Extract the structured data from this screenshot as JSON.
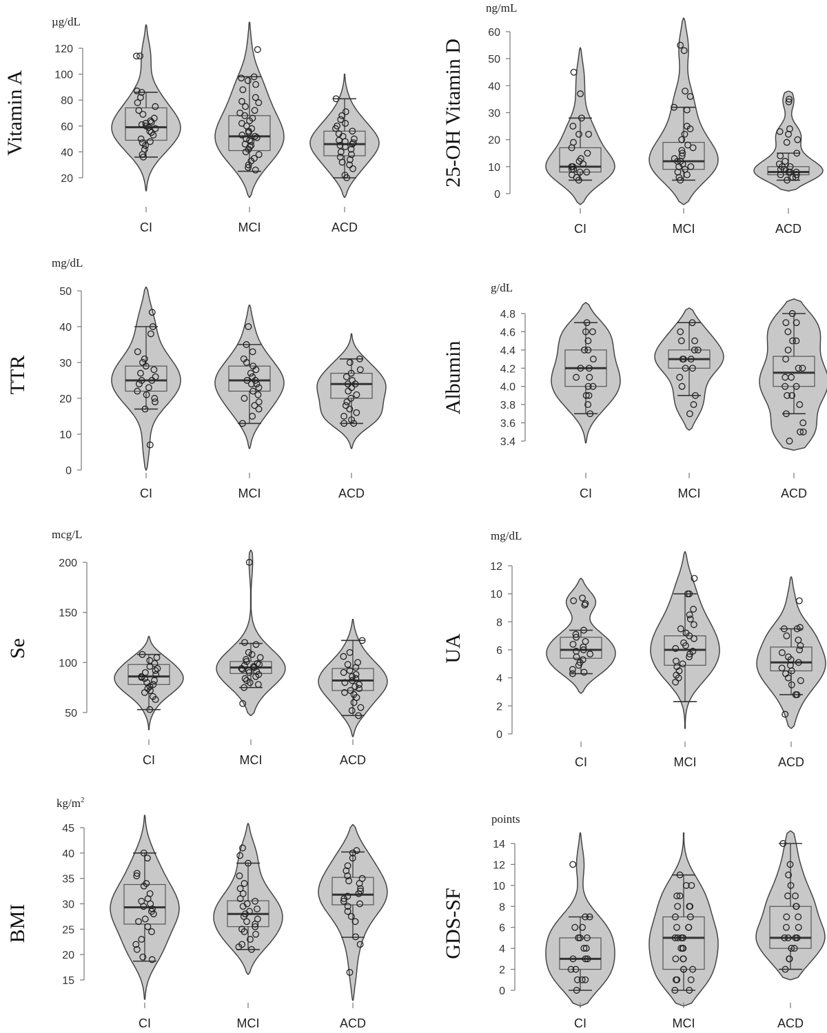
{
  "chart_data": [
    {
      "type": "violin",
      "title": "",
      "ylabel": "Vitamin A",
      "unit": "µg/dL",
      "yticks": [
        20,
        40,
        60,
        80,
        100,
        120
      ],
      "ylim": [
        20,
        120
      ],
      "categories": [
        "CI",
        "MCI",
        "ACD"
      ],
      "series": [
        {
          "group": "CI",
          "violin_range": [
            10,
            138
          ],
          "box": {
            "q1": 49,
            "median": 59,
            "q3": 74
          },
          "whiskers": [
            36,
            86
          ],
          "points": [
            114,
            114,
            87,
            86,
            82,
            78,
            75,
            72,
            69,
            66,
            64,
            63,
            62,
            61,
            60,
            59,
            58,
            56,
            55,
            53,
            50,
            48,
            47,
            45,
            42,
            38,
            36
          ]
        },
        {
          "group": "MCI",
          "violin_range": [
            5,
            140
          ],
          "box": {
            "q1": 41,
            "median": 52,
            "q3": 68
          },
          "whiskers": [
            25,
            98
          ],
          "points": [
            119,
            98,
            97,
            95,
            92,
            88,
            82,
            79,
            78,
            75,
            72,
            70,
            68,
            66,
            64,
            62,
            60,
            58,
            56,
            55,
            53,
            52,
            51,
            50,
            49,
            48,
            46,
            45,
            44,
            42,
            40,
            38,
            35,
            33,
            30,
            28,
            26
          ]
        },
        {
          "group": "ACD",
          "violin_range": [
            5,
            100
          ],
          "box": {
            "q1": 37,
            "median": 46,
            "q3": 56
          },
          "whiskers": [
            20,
            81
          ],
          "points": [
            81,
            71,
            68,
            65,
            62,
            60,
            58,
            56,
            54,
            52,
            50,
            49,
            48,
            47,
            46,
            45,
            44,
            42,
            40,
            38,
            36,
            34,
            32,
            30,
            27,
            22,
            20
          ]
        }
      ]
    },
    {
      "type": "violin",
      "title": "",
      "ylabel": "25-OH Vitamin D",
      "unit": "ng/mL",
      "yticks": [
        0,
        10,
        20,
        30,
        40,
        50,
        60
      ],
      "ylim": [
        0,
        60
      ],
      "categories": [
        "CI",
        "MCI",
        "ACD"
      ],
      "series": [
        {
          "group": "CI",
          "violin_range": [
            -4,
            54
          ],
          "box": {
            "q1": 8,
            "median": 10,
            "q3": 17
          },
          "whiskers": [
            5,
            28
          ],
          "points": [
            45,
            37,
            28,
            25,
            22,
            22,
            19,
            17,
            15,
            13,
            12,
            11,
            10,
            10,
            9,
            9,
            8,
            8,
            7,
            6,
            5
          ]
        },
        {
          "group": "MCI",
          "violin_range": [
            -4,
            65
          ],
          "box": {
            "q1": 9,
            "median": 12,
            "q3": 19
          },
          "whiskers": [
            5,
            32
          ],
          "points": [
            55,
            53,
            38,
            36,
            32,
            31,
            25,
            24,
            22,
            20,
            18,
            17,
            16,
            15,
            14,
            13,
            12,
            12,
            11,
            10,
            10,
            9,
            8,
            7,
            6,
            5
          ]
        },
        {
          "group": "ACD",
          "violin_range": [
            1,
            38
          ],
          "box": {
            "q1": 7,
            "median": 8,
            "q3": 10
          },
          "whiskers": [
            5,
            15
          ],
          "points": [
            35,
            34,
            24,
            23,
            22,
            20,
            19,
            15,
            14,
            12,
            11,
            10,
            10,
            9,
            9,
            8,
            8,
            8,
            7,
            7,
            6,
            6,
            5
          ]
        }
      ]
    },
    {
      "type": "violin",
      "title": "",
      "ylabel": "TTR",
      "unit": "mg/dL",
      "yticks": [
        0,
        10,
        20,
        30,
        40,
        50
      ],
      "ylim": [
        0,
        50
      ],
      "categories": [
        "CI",
        "MCI",
        "ACD"
      ],
      "series": [
        {
          "group": "CI",
          "violin_range": [
            0,
            51
          ],
          "box": {
            "q1": 22,
            "median": 25,
            "q3": 29
          },
          "whiskers": [
            17,
            40
          ],
          "points": [
            44,
            40,
            38,
            33,
            31,
            30,
            29,
            28,
            27,
            26,
            25,
            25,
            24,
            23,
            22,
            21,
            20,
            19,
            17,
            7
          ]
        },
        {
          "group": "MCI",
          "violin_range": [
            6,
            46
          ],
          "box": {
            "q1": 22,
            "median": 25,
            "q3": 29
          },
          "whiskers": [
            13,
            35
          ],
          "points": [
            40,
            35,
            33,
            31,
            30,
            29,
            28,
            27,
            26,
            25,
            25,
            24,
            24,
            23,
            22,
            21,
            20,
            19,
            18,
            17,
            15,
            13
          ]
        },
        {
          "group": "ACD",
          "violin_range": [
            6,
            38
          ],
          "box": {
            "q1": 20,
            "median": 24,
            "q3": 27
          },
          "whiskers": [
            13,
            31
          ],
          "points": [
            31,
            30,
            28,
            27,
            26,
            25,
            24,
            24,
            23,
            22,
            21,
            20,
            19,
            18,
            17,
            16,
            15,
            14,
            13,
            13
          ]
        }
      ]
    },
    {
      "type": "violin",
      "title": "",
      "ylabel": "Albumin",
      "unit": "g/dL",
      "yticks": [
        3.4,
        3.6,
        3.8,
        4.0,
        4.2,
        4.4,
        4.6,
        4.8
      ],
      "ylim": [
        3.4,
        4.8
      ],
      "categories": [
        "CI",
        "MCI",
        "ACD"
      ],
      "series": [
        {
          "group": "CI",
          "violin_range": [
            3.38,
            4.92
          ],
          "box": {
            "q1": 4.0,
            "median": 4.2,
            "q3": 4.4
          },
          "whiskers": [
            3.7,
            4.7
          ],
          "points": [
            4.7,
            4.6,
            4.6,
            4.5,
            4.4,
            4.4,
            4.3,
            4.2,
            4.2,
            4.1,
            4.1,
            4.0,
            4.0,
            3.9,
            3.9,
            3.8,
            3.7
          ]
        },
        {
          "group": "MCI",
          "violin_range": [
            3.52,
            4.86
          ],
          "box": {
            "q1": 4.2,
            "median": 4.3,
            "q3": 4.4
          },
          "whiskers": [
            3.9,
            4.7
          ],
          "points": [
            4.7,
            4.6,
            4.5,
            4.5,
            4.4,
            4.4,
            4.3,
            4.3,
            4.3,
            4.2,
            4.2,
            4.1,
            4.0,
            3.9,
            3.8,
            3.7
          ]
        },
        {
          "group": "ACD",
          "violin_range": [
            3.3,
            4.96
          ],
          "box": {
            "q1": 4.0,
            "median": 4.15,
            "q3": 4.33
          },
          "whiskers": [
            3.7,
            4.8
          ],
          "points": [
            4.8,
            4.7,
            4.7,
            4.6,
            4.5,
            4.5,
            4.4,
            4.3,
            4.2,
            4.2,
            4.1,
            4.1,
            4.0,
            4.0,
            3.9,
            3.9,
            3.8,
            3.7,
            3.6,
            3.5,
            3.5,
            3.4
          ]
        }
      ]
    },
    {
      "type": "violin",
      "title": "",
      "ylabel": "Se",
      "unit": "mcg/L",
      "yticks": [
        50,
        100,
        150,
        200
      ],
      "ylim": [
        50,
        200
      ],
      "categories": [
        "CI",
        "MCI",
        "ACD"
      ],
      "series": [
        {
          "group": "CI",
          "violin_range": [
            33,
            126
          ],
          "box": {
            "q1": 78,
            "median": 86,
            "q3": 98
          },
          "whiskers": [
            53,
            108
          ],
          "points": [
            108,
            105,
            102,
            99,
            96,
            94,
            92,
            90,
            88,
            86,
            85,
            84,
            82,
            80,
            78,
            76,
            74,
            72,
            70,
            66,
            63,
            53
          ]
        },
        {
          "group": "MCI",
          "violin_range": [
            47,
            212
          ],
          "box": {
            "q1": 89,
            "median": 95,
            "q3": 101
          },
          "whiskers": [
            75,
            119
          ],
          "points": [
            200,
            120,
            118,
            110,
            108,
            105,
            103,
            101,
            99,
            98,
            97,
            96,
            95,
            94,
            93,
            92,
            91,
            90,
            88,
            86,
            84,
            82,
            80,
            78,
            75,
            59
          ]
        },
        {
          "group": "ACD",
          "violin_range": [
            26,
            143
          ],
          "box": {
            "q1": 72,
            "median": 82,
            "q3": 94
          },
          "whiskers": [
            47,
            122
          ],
          "points": [
            122,
            110,
            106,
            100,
            98,
            95,
            92,
            90,
            88,
            86,
            84,
            82,
            80,
            78,
            76,
            74,
            72,
            70,
            68,
            65,
            60,
            55,
            52,
            47
          ]
        }
      ]
    },
    {
      "type": "violin",
      "title": "",
      "ylabel": "UA",
      "unit": "mg/dL",
      "yticks": [
        0,
        2,
        4,
        6,
        8,
        10,
        12
      ],
      "ylim": [
        0,
        12
      ],
      "categories": [
        "CI",
        "MCI",
        "ACD"
      ],
      "series": [
        {
          "group": "CI",
          "violin_range": [
            2.9,
            11.1
          ],
          "box": {
            "q1": 5.4,
            "median": 6.0,
            "q3": 6.9
          },
          "whiskers": [
            4.3,
            7.4
          ],
          "points": [
            9.7,
            9.5,
            9.3,
            9.2,
            7.4,
            7.1,
            6.9,
            6.6,
            6.4,
            6.2,
            6.0,
            5.9,
            5.7,
            5.5,
            5.3,
            5.1,
            4.9,
            4.6,
            4.4,
            4.3
          ]
        },
        {
          "group": "MCI",
          "violin_range": [
            0.4,
            13.0
          ],
          "box": {
            "q1": 4.9,
            "median": 6.0,
            "q3": 7.0
          },
          "whiskers": [
            2.3,
            10.0
          ],
          "points": [
            11.1,
            10.0,
            10.0,
            8.9,
            8.5,
            8.2,
            7.8,
            7.5,
            7.2,
            7.0,
            6.8,
            6.5,
            6.3,
            6.1,
            5.9,
            5.7,
            5.5,
            5.2,
            5.0,
            4.8,
            4.5,
            4.2,
            4.0,
            3.7
          ]
        },
        {
          "group": "ACD",
          "violin_range": [
            0.4,
            11.2
          ],
          "box": {
            "q1": 4.5,
            "median": 5.1,
            "q3": 6.2
          },
          "whiskers": [
            2.8,
            7.5
          ],
          "points": [
            9.5,
            7.6,
            7.5,
            7.5,
            7.0,
            6.7,
            6.3,
            6.0,
            5.8,
            5.5,
            5.3,
            5.1,
            4.9,
            4.7,
            4.5,
            4.3,
            4.0,
            3.8,
            3.5,
            2.8,
            2.8,
            1.4
          ]
        }
      ]
    },
    {
      "type": "violin",
      "title": "",
      "ylabel": "BMI",
      "unit": "kg/m",
      "unit_superscript": "2",
      "yticks": [
        15,
        20,
        25,
        30,
        35,
        40,
        45
      ],
      "ylim": [
        15,
        45
      ],
      "categories": [
        "CI",
        "MCI",
        "ACD"
      ],
      "series": [
        {
          "group": "CI",
          "violin_range": [
            11.2,
            47.4
          ],
          "box": {
            "q1": 26,
            "median": 29.3,
            "q3": 33.8
          },
          "whiskers": [
            18.7,
            40
          ],
          "points": [
            40,
            39,
            36,
            35.5,
            34,
            33.5,
            32,
            31,
            30.5,
            30,
            29.5,
            29,
            28.5,
            28,
            27,
            26.5,
            25.5,
            24.5,
            23,
            22,
            21,
            19.5,
            19
          ]
        },
        {
          "group": "MCI",
          "violin_range": [
            16.1,
            45.8
          ],
          "box": {
            "q1": 25.5,
            "median": 28,
            "q3": 30.6
          },
          "whiskers": [
            21,
            38
          ],
          "points": [
            41,
            39.5,
            38,
            35.5,
            34,
            33,
            32,
            31,
            30.5,
            30,
            29.5,
            29,
            28.5,
            28,
            27.5,
            27,
            26.5,
            26,
            25.5,
            25,
            24.5,
            24,
            23,
            22,
            21.5,
            21
          ]
        },
        {
          "group": "ACD",
          "violin_range": [
            11,
            45.6
          ],
          "box": {
            "q1": 29.8,
            "median": 31.8,
            "q3": 35.2
          },
          "whiskers": [
            23.4,
            40.2
          ],
          "points": [
            40.5,
            40,
            39,
            37.5,
            36.5,
            35.5,
            35,
            34.5,
            34,
            33,
            32.5,
            32,
            31.5,
            31,
            30.5,
            30,
            29.5,
            28.5,
            27.5,
            26.5,
            23.5,
            22,
            16.5
          ]
        }
      ]
    },
    {
      "type": "violin",
      "title": "",
      "ylabel": "GDS-SF",
      "unit": "points",
      "yticks": [
        0,
        2,
        4,
        6,
        8,
        10,
        12,
        14
      ],
      "ylim": [
        0,
        14
      ],
      "categories": [
        "CI",
        "MCI",
        "ACD"
      ],
      "series": [
        {
          "group": "CI",
          "violin_range": [
            -1.5,
            15
          ],
          "box": {
            "q1": 2,
            "median": 3,
            "q3": 5
          },
          "whiskers": [
            0,
            7
          ],
          "points": [
            12,
            7,
            7,
            6,
            6,
            5,
            5,
            5,
            4,
            4,
            3,
            3,
            3,
            2,
            2,
            1,
            1,
            1,
            0
          ]
        },
        {
          "group": "MCI",
          "violin_range": [
            -1.5,
            15
          ],
          "box": {
            "q1": 2,
            "median": 5,
            "q3": 7
          },
          "whiskers": [
            0,
            11
          ],
          "points": [
            11,
            10,
            10,
            9,
            9,
            8,
            8,
            8,
            7,
            7,
            6,
            6,
            6,
            5,
            5,
            5,
            5,
            4,
            4,
            4,
            3,
            3,
            3,
            2,
            2,
            2,
            1,
            1,
            1,
            0,
            0
          ]
        },
        {
          "group": "ACD",
          "violin_range": [
            1,
            15.2
          ],
          "box": {
            "q1": 4,
            "median": 5,
            "q3": 8
          },
          "whiskers": [
            2,
            14
          ],
          "points": [
            14,
            12,
            11,
            10,
            9,
            9,
            8,
            8,
            7,
            7,
            6,
            6,
            5,
            5,
            5,
            5,
            4,
            4,
            3,
            3,
            2
          ]
        }
      ]
    }
  ]
}
